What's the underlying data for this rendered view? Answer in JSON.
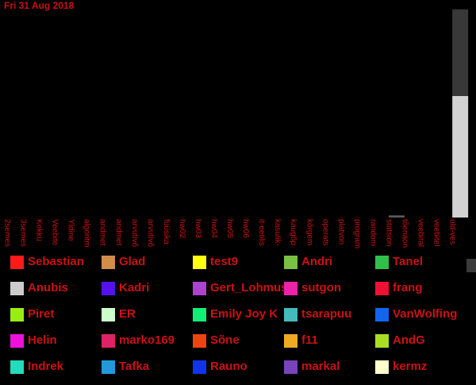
{
  "date_label": "Fri 31 Aug 2018",
  "colors": {
    "background": "#000000",
    "text": "#cc1111",
    "bar_top": "#383838",
    "bar_bottom": "#d2d2d2",
    "bar_small": "#5a5a5a"
  },
  "chart_data": {
    "type": "bar",
    "stacked": true,
    "categories": [
      "2semes",
      "3semes",
      "Kokku",
      "Veebite",
      "Yldine",
      "algoritm",
      "andmet",
      "andmet",
      "arvutivõ",
      "arvutivõ",
      "füüsika",
      "hw02",
      "hw03",
      "hw04",
      "hw05",
      "hw06",
      "it-eetilis",
      "kasulik-",
      "kaugõp",
      "kõrgem",
      "operats",
      "platvon",
      "program",
      "random",
      "statsion",
      "tõenäon",
      "veebiral",
      "veebitel",
      "üld-ves"
    ],
    "series": [
      {
        "values": [
          0,
          0,
          0,
          0,
          0,
          0,
          0,
          0,
          0,
          0,
          0,
          0,
          0,
          0,
          0,
          0,
          0,
          0,
          0,
          0,
          0,
          0,
          0,
          0,
          1.5,
          0,
          0,
          0,
          87
        ]
      },
      {
        "values": [
          0,
          0,
          0,
          0,
          0,
          0,
          0,
          0,
          0,
          0,
          0,
          0,
          0,
          0,
          0,
          0,
          0,
          0,
          0,
          0,
          0,
          0,
          0,
          0,
          0,
          0,
          0,
          0,
          62
        ]
      }
    ],
    "ylim": [
      0,
      150
    ]
  },
  "legend": [
    {
      "label": "Sebastian",
      "color": "#ff1a1a"
    },
    {
      "label": "Glad",
      "color": "#d48c4a"
    },
    {
      "label": "test9",
      "color": "#ffff11"
    },
    {
      "label": "Andri",
      "color": "#7ac143"
    },
    {
      "label": "Tanel",
      "color": "#2ec04b"
    },
    {
      "label": "Anubis",
      "color": "#cccccc"
    },
    {
      "label": "Kadri",
      "color": "#5511ee"
    },
    {
      "label": "Gert_Lohmus",
      "color": "#aa44cc"
    },
    {
      "label": "sutgon",
      "color": "#ee22aa"
    },
    {
      "label": "frang",
      "color": "#ee1133"
    },
    {
      "label": "Piret",
      "color": "#99ee11"
    },
    {
      "label": "ER",
      "color": "#ccffcc"
    },
    {
      "label": "Emily Joy K",
      "color": "#11ee77"
    },
    {
      "label": "tsarapuu",
      "color": "#44bbbb"
    },
    {
      "label": "VanWolfing",
      "color": "#1166ee"
    },
    {
      "label": "Helin",
      "color": "#ee11dd"
    },
    {
      "label": "marko169",
      "color": "#dd2266"
    },
    {
      "label": "Sõne",
      "color": "#ee4411"
    },
    {
      "label": "f11",
      "color": "#eeaa22"
    },
    {
      "label": "AndG",
      "color": "#aadd22"
    },
    {
      "label": "Indrek",
      "color": "#22ddbb"
    },
    {
      "label": "Tafka",
      "color": "#2299dd"
    },
    {
      "label": "Rauno",
      "color": "#1133ee"
    },
    {
      "label": "markal",
      "color": "#7744bb"
    },
    {
      "label": "kermz",
      "color": "#ffffcc"
    }
  ],
  "legend_more_color": "#3a3a3a"
}
